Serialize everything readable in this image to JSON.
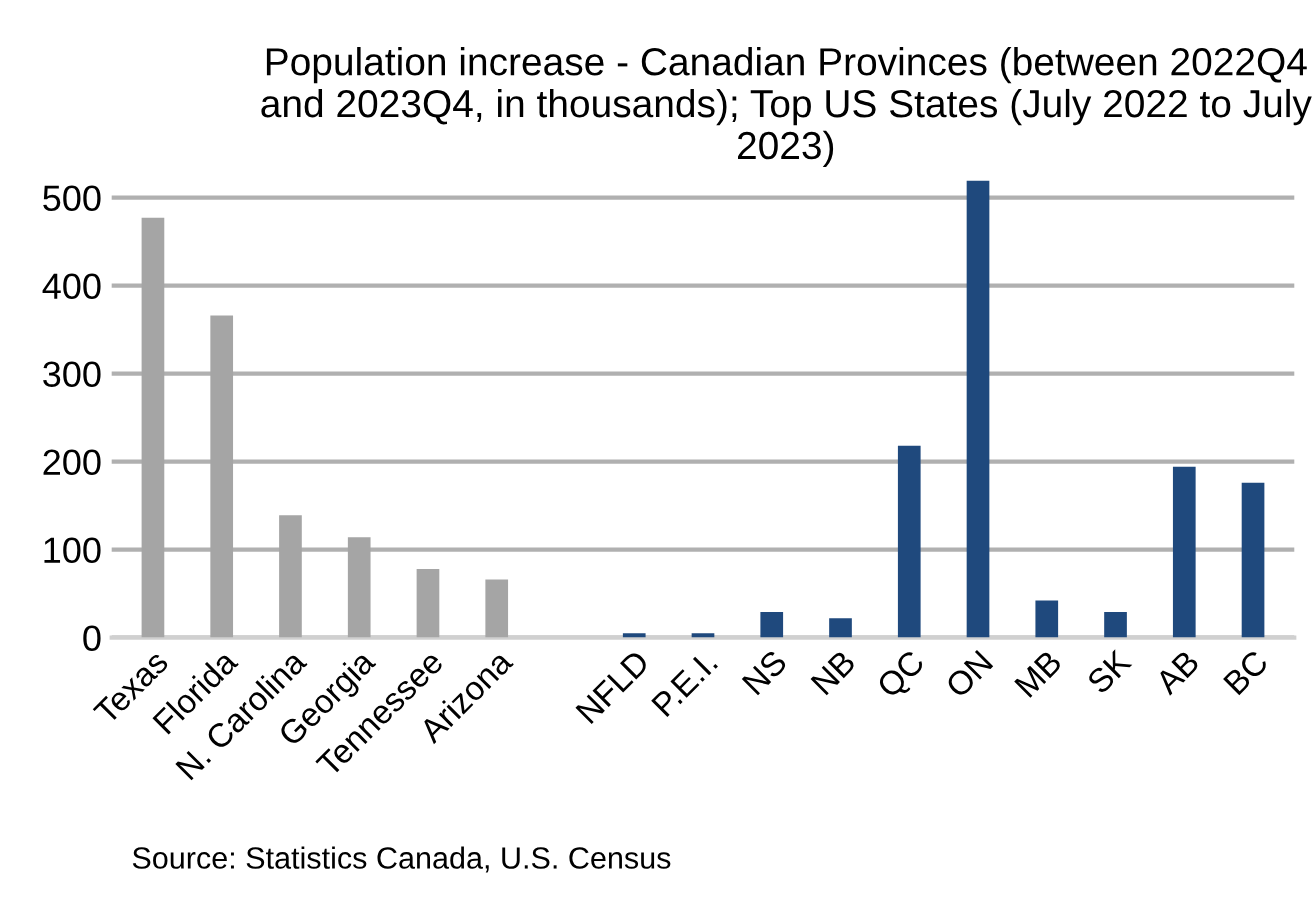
{
  "chart_data": {
    "type": "bar",
    "title": "Population increase - Canadian Provinces (between 2022Q4 and 2023Q4, in thousands); Top US States (July 2022 to July 2023)",
    "categories": [
      "Texas",
      "Florida",
      "N. Carolina",
      "Georgia",
      "Tennessee",
      "Arizona",
      null,
      "NFLD",
      "P.E.I.",
      "NS",
      "NB",
      "QC",
      "ON",
      "MB",
      "SK",
      "AB",
      "BC"
    ],
    "values": [
      477,
      366,
      139,
      114,
      78,
      66,
      null,
      5,
      5,
      29,
      22,
      218,
      519,
      42,
      29,
      194,
      176
    ],
    "colors": [
      "#a5a5a5",
      "#a5a5a5",
      "#a5a5a5",
      "#a5a5a5",
      "#a5a5a5",
      "#a5a5a5",
      "#a5a5a5",
      "#1f497d",
      "#1f497d",
      "#1f497d",
      "#1f497d",
      "#1f497d",
      "#1f497d",
      "#1f497d",
      "#1f497d",
      "#1f497d",
      "#1f497d"
    ],
    "ylim": [
      0,
      525
    ],
    "yticks": [
      0,
      100,
      200,
      300,
      400,
      500
    ],
    "grid": "y",
    "legend": false,
    "annotations": [
      "Source: Statistics Canada, U.S. Census"
    ]
  }
}
